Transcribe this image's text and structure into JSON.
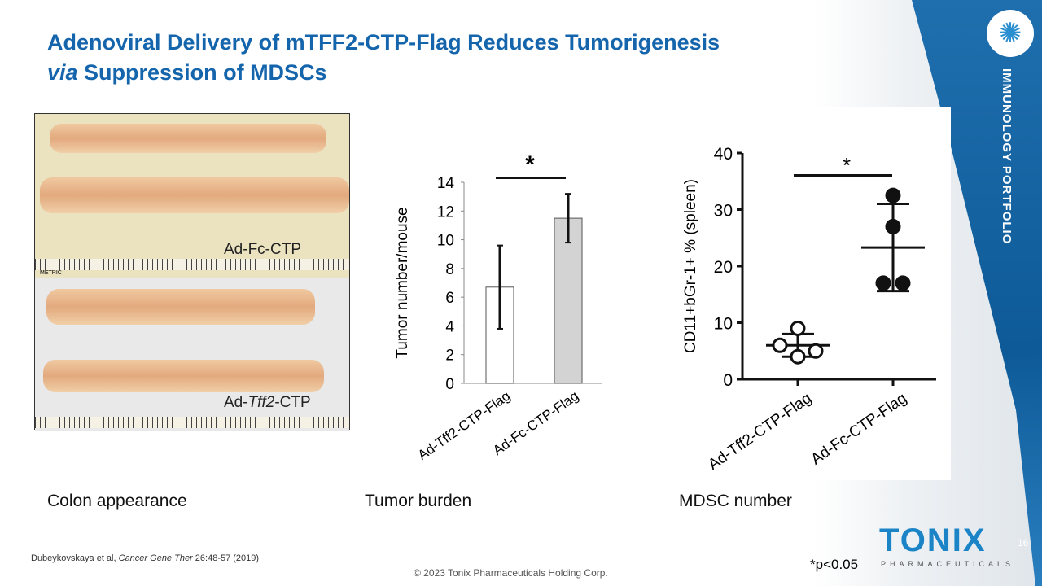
{
  "title_line1": "Adenoviral Delivery of mTFF2-CTP-Flag Reduces Tumorigenesis",
  "title_line2_italic": "via",
  "title_line2_rest": " Suppression of MDSCs",
  "side_label": "IMMUNOLOGY PORTFOLIO",
  "photo": {
    "label_top": "Ad-Fc-CTP",
    "label_bottom_pre": "Ad-",
    "label_bottom_italic": "Tff2",
    "label_bottom_post": "-CTP",
    "ruler_text": "METRIC"
  },
  "captions": [
    "Colon appearance",
    "Tumor burden",
    "MDSC number"
  ],
  "reference": {
    "authors": "Dubeykovskaya et al, ",
    "journal": "Cancer Gene Ther",
    "rest": " 26:48-57 (2019)"
  },
  "copyright": "© 2023 Tonix Pharmaceuticals Holding Corp.",
  "brand": {
    "name": "TONIX",
    "sub": "PHARMACEUTICALS"
  },
  "page_number": "16",
  "pvalue_note": "*p<0.05",
  "colors": {
    "title": "#1565ad",
    "band": "#0e5a98",
    "bar1": "#ffffff",
    "bar2": "#d3d3d3"
  },
  "chart_data": [
    {
      "type": "bar",
      "ylabel": "Tumor number/mouse",
      "ylim": [
        0,
        14
      ],
      "yticks": [
        0,
        2,
        4,
        6,
        8,
        10,
        12,
        14
      ],
      "categories": [
        "Ad-Tff2-CTP-Flag",
        "Ad-Fc-CTP-Flag"
      ],
      "values": [
        6.7,
        11.5
      ],
      "error": [
        2.9,
        1.7
      ],
      "significance": "*"
    },
    {
      "type": "scatter",
      "ylabel": "CD11+bGr-1+ % (spleen)",
      "ylim": [
        0,
        40
      ],
      "yticks": [
        0,
        10,
        20,
        30,
        40
      ],
      "categories": [
        "Ad-Tff2-CTP-Flag",
        "Ad-Fc-CTP-Flag"
      ],
      "points": [
        [
          9,
          6,
          4,
          5
        ],
        [
          32.5,
          27,
          17,
          17
        ]
      ],
      "mean": [
        6,
        23.3
      ],
      "sd": [
        2,
        7.7
      ],
      "significance": "*"
    }
  ]
}
